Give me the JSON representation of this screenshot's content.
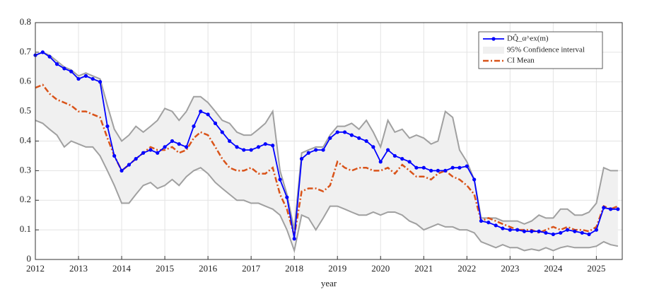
{
  "chart_data": {
    "type": "line",
    "xlabel": "year",
    "x": [
      2012,
      2012.17,
      2012.33,
      2012.5,
      2012.67,
      2012.83,
      2013,
      2013.17,
      2013.33,
      2013.5,
      2013.67,
      2013.83,
      2014,
      2014.17,
      2014.33,
      2014.5,
      2014.67,
      2014.83,
      2015,
      2015.17,
      2015.33,
      2015.5,
      2015.67,
      2015.83,
      2016,
      2016.17,
      2016.33,
      2016.5,
      2016.67,
      2016.83,
      2017,
      2017.17,
      2017.33,
      2017.5,
      2017.67,
      2017.83,
      2018,
      2018.17,
      2018.33,
      2018.5,
      2018.67,
      2018.83,
      2019,
      2019.17,
      2019.33,
      2019.5,
      2019.67,
      2019.83,
      2020,
      2020.17,
      2020.33,
      2020.5,
      2020.67,
      2020.83,
      2021,
      2021.17,
      2021.33,
      2021.5,
      2021.67,
      2021.83,
      2022,
      2022.17,
      2022.33,
      2022.5,
      2022.67,
      2022.83,
      2023,
      2023.17,
      2023.33,
      2023.5,
      2023.67,
      2023.83,
      2024,
      2024.17,
      2024.33,
      2024.5,
      2024.67,
      2024.83,
      2025,
      2025.17,
      2025.33,
      2025.5
    ],
    "series": [
      {
        "name": "DQ̂_α^ex(m)",
        "color": "#0000ff",
        "values": [
          0.69,
          0.7,
          0.685,
          0.66,
          0.645,
          0.635,
          0.61,
          0.62,
          0.61,
          0.6,
          0.45,
          0.35,
          0.3,
          0.32,
          0.34,
          0.36,
          0.37,
          0.36,
          0.38,
          0.4,
          0.39,
          0.38,
          0.45,
          0.5,
          0.49,
          0.46,
          0.43,
          0.4,
          0.38,
          0.37,
          0.37,
          0.38,
          0.39,
          0.385,
          0.27,
          0.21,
          0.07,
          0.34,
          0.36,
          0.37,
          0.37,
          0.41,
          0.43,
          0.43,
          0.42,
          0.41,
          0.4,
          0.38,
          0.33,
          0.37,
          0.35,
          0.34,
          0.33,
          0.31,
          0.31,
          0.3,
          0.3,
          0.3,
          0.31,
          0.31,
          0.315,
          0.27,
          0.13,
          0.125,
          0.115,
          0.105,
          0.1,
          0.1,
          0.095,
          0.095,
          0.095,
          0.09,
          0.085,
          0.09,
          0.1,
          0.095,
          0.09,
          0.085,
          0.1,
          0.175,
          0.17,
          0.17
        ]
      },
      {
        "name": "95% Confidence interval",
        "color": "#f0f0f0",
        "upper": [
          0.69,
          0.7,
          0.69,
          0.67,
          0.65,
          0.64,
          0.62,
          0.63,
          0.62,
          0.61,
          0.52,
          0.44,
          0.4,
          0.42,
          0.45,
          0.43,
          0.45,
          0.47,
          0.51,
          0.5,
          0.47,
          0.5,
          0.55,
          0.55,
          0.53,
          0.5,
          0.47,
          0.46,
          0.43,
          0.42,
          0.42,
          0.44,
          0.46,
          0.5,
          0.3,
          0.22,
          0.1,
          0.36,
          0.37,
          0.38,
          0.38,
          0.42,
          0.45,
          0.45,
          0.46,
          0.44,
          0.47,
          0.43,
          0.38,
          0.47,
          0.43,
          0.44,
          0.41,
          0.42,
          0.41,
          0.39,
          0.4,
          0.5,
          0.48,
          0.37,
          0.33,
          0.27,
          0.14,
          0.14,
          0.14,
          0.13,
          0.13,
          0.13,
          0.12,
          0.13,
          0.15,
          0.14,
          0.14,
          0.17,
          0.17,
          0.15,
          0.15,
          0.16,
          0.19,
          0.31,
          0.3,
          0.3
        ],
        "lower": [
          0.47,
          0.46,
          0.44,
          0.42,
          0.38,
          0.4,
          0.39,
          0.38,
          0.38,
          0.35,
          0.3,
          0.25,
          0.19,
          0.19,
          0.22,
          0.25,
          0.26,
          0.24,
          0.25,
          0.27,
          0.25,
          0.28,
          0.3,
          0.31,
          0.29,
          0.26,
          0.24,
          0.22,
          0.2,
          0.2,
          0.19,
          0.19,
          0.18,
          0.17,
          0.15,
          0.1,
          0.03,
          0.15,
          0.14,
          0.1,
          0.14,
          0.18,
          0.18,
          0.17,
          0.16,
          0.15,
          0.15,
          0.16,
          0.15,
          0.16,
          0.16,
          0.15,
          0.13,
          0.12,
          0.1,
          0.11,
          0.12,
          0.11,
          0.11,
          0.1,
          0.1,
          0.09,
          0.06,
          0.05,
          0.04,
          0.05,
          0.04,
          0.04,
          0.03,
          0.035,
          0.03,
          0.04,
          0.03,
          0.04,
          0.045,
          0.04,
          0.04,
          0.04,
          0.045,
          0.06,
          0.05,
          0.045
        ]
      },
      {
        "name": "CI Mean",
        "color": "#d95319",
        "values": [
          0.58,
          0.59,
          0.56,
          0.54,
          0.53,
          0.52,
          0.5,
          0.5,
          0.49,
          0.48,
          0.41,
          0.35,
          0.3,
          0.32,
          0.34,
          0.36,
          0.38,
          0.37,
          0.37,
          0.38,
          0.36,
          0.37,
          0.41,
          0.43,
          0.42,
          0.38,
          0.34,
          0.31,
          0.3,
          0.3,
          0.31,
          0.29,
          0.29,
          0.31,
          0.22,
          0.17,
          0.08,
          0.23,
          0.24,
          0.24,
          0.23,
          0.25,
          0.33,
          0.31,
          0.3,
          0.31,
          0.31,
          0.3,
          0.3,
          0.31,
          0.29,
          0.32,
          0.3,
          0.28,
          0.28,
          0.27,
          0.29,
          0.3,
          0.28,
          0.27,
          0.25,
          0.22,
          0.13,
          0.14,
          0.13,
          0.12,
          0.11,
          0.1,
          0.1,
          0.1,
          0.09,
          0.1,
          0.11,
          0.1,
          0.11,
          0.1,
          0.1,
          0.095,
          0.11,
          0.18,
          0.17,
          0.18
        ]
      }
    ],
    "xlim": [
      2012,
      2025.6
    ],
    "xticks": [
      2012,
      2013,
      2014,
      2015,
      2016,
      2017,
      2018,
      2019,
      2020,
      2021,
      2022,
      2023,
      2024,
      2025
    ],
    "ylim": [
      0,
      0.8
    ],
    "yticks": [
      0,
      0.1,
      0.2,
      0.3,
      0.4,
      0.5,
      0.6,
      0.7,
      0.8
    ],
    "grid": true,
    "legend": "upper right",
    "band_edge_color": "#a0a0a0"
  }
}
